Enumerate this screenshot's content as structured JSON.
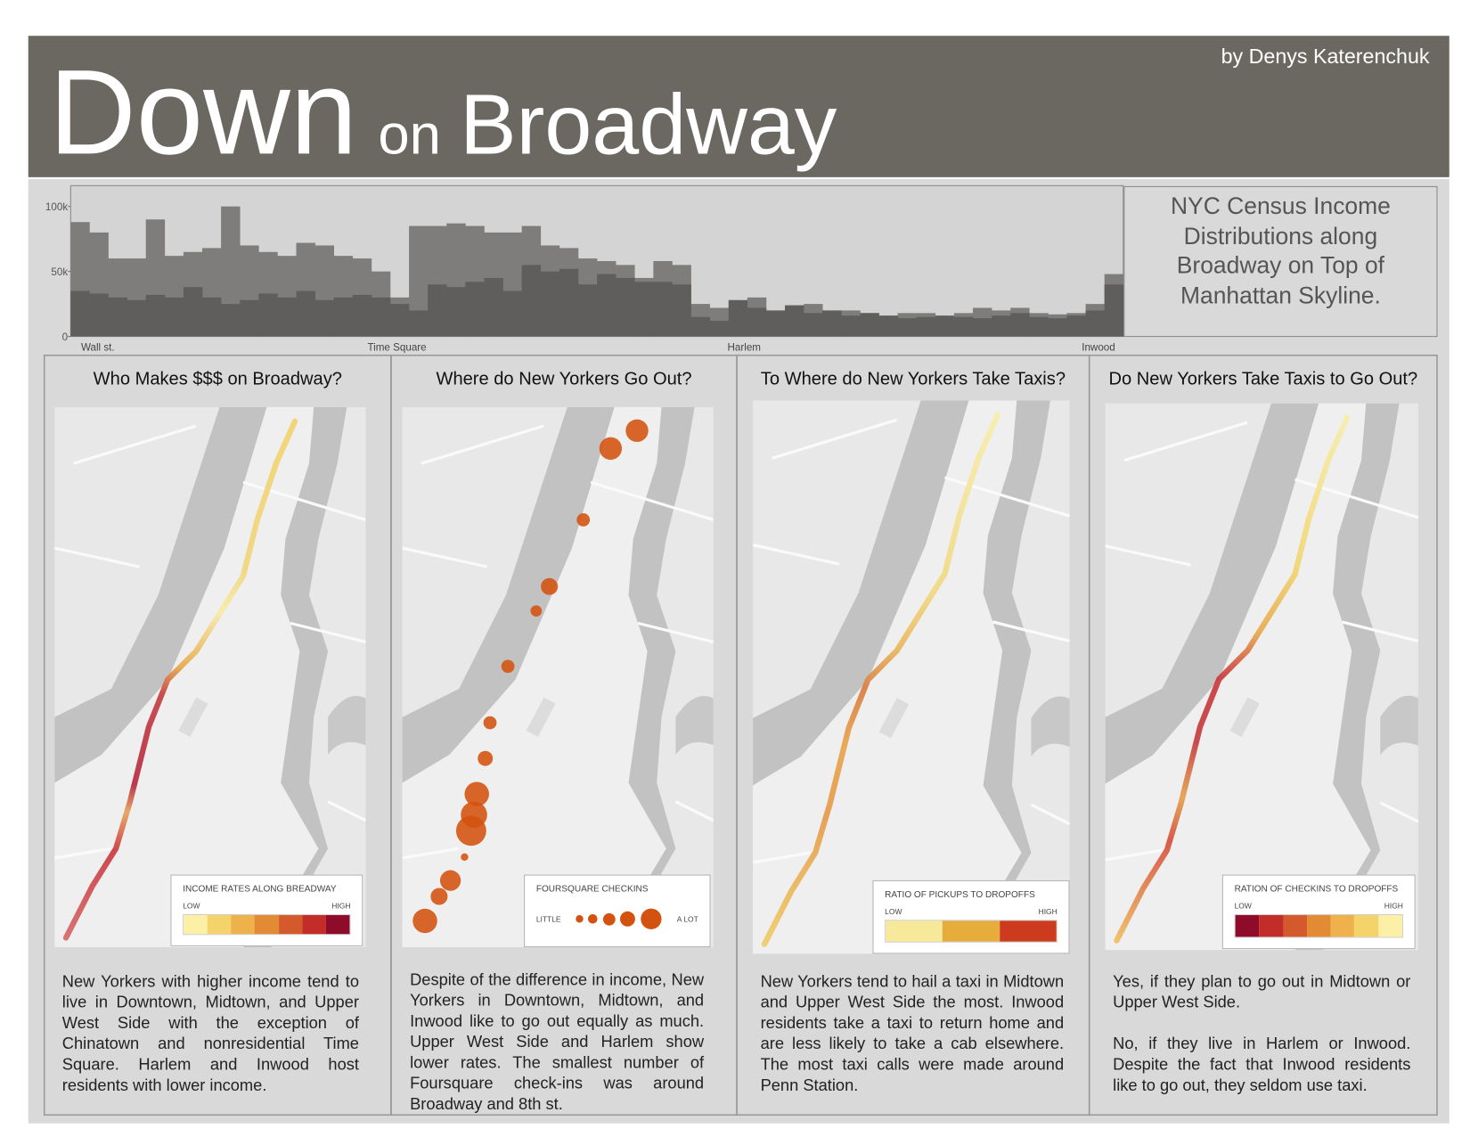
{
  "header": {
    "title_parts": [
      "Down",
      "on",
      "Broadway"
    ],
    "author": "by Denys Katerenchuk"
  },
  "chart_data": {
    "type": "bar",
    "ylim": [
      0,
      116000
    ],
    "yticks": [
      0,
      {
        "value": 50000,
        "label": "50k"
      },
      {
        "value": 100000,
        "label": "100k"
      }
    ],
    "x_labels": [
      "Wall st.",
      "Time Square",
      "Harlem",
      "Inwood"
    ],
    "series": [
      {
        "color": "#7e7d7b",
        "values": [
          88000,
          80000,
          60000,
          60000,
          90000,
          62000,
          65000,
          68000,
          100000,
          70000,
          65000,
          62000,
          72000,
          70000,
          62000,
          60000,
          50000,
          30000,
          85000,
          85000,
          87000,
          85000,
          80000,
          80000,
          85000,
          70000,
          68000,
          60000,
          58000,
          55000,
          45000,
          58000,
          55000,
          25000,
          22000,
          20000,
          30000,
          20000,
          18000,
          25000,
          20000,
          20000,
          18000,
          16000,
          18000,
          18000,
          16000,
          18000,
          22000,
          20000,
          22000,
          18000,
          17000,
          18000,
          25000,
          48000
        ]
      },
      {
        "color": "#5f5e5c",
        "values": [
          35000,
          33000,
          30000,
          28000,
          32000,
          30000,
          38000,
          30000,
          25000,
          28000,
          33000,
          30000,
          35000,
          28000,
          30000,
          32000,
          30000,
          25000,
          20000,
          40000,
          38000,
          42000,
          45000,
          35000,
          55000,
          50000,
          52000,
          40000,
          48000,
          45000,
          42000,
          42000,
          40000,
          15000,
          12000,
          28000,
          22000,
          20000,
          24000,
          18000,
          20000,
          16000,
          18000,
          16000,
          14000,
          15000,
          16000,
          15000,
          14000,
          16000,
          18000,
          15000,
          14000,
          16000,
          20000,
          40000
        ]
      }
    ]
  },
  "caption": "NYC Census Income Distributions along Broadway on Top of Manhattan Skyline.",
  "panels": [
    {
      "title": "Who Makes $$$ on Broadway?",
      "legend": {
        "title": "INCOME RATES ALONG BREADWAY",
        "low": "LOW",
        "high": "HIGH"
      },
      "text": [
        "New Yorkers with higher income tend to live in Downtown, Midtown, and Upper West Side with the exception of Chinatown and nonresidential Time Square. Harlem and Inwood host residents with lower income."
      ]
    },
    {
      "title": "Where do New Yorkers Go Out?",
      "legend": {
        "title": "FOURSQUARE CHECKINS",
        "low": "LITTLE",
        "high": "A LOT"
      },
      "text": [
        "Despite of the difference in income, New Yorkers in Downtown, Midtown, and Inwood like to go out equally as much. Upper West Side and Harlem show lower rates. The smallest number of Foursquare check-ins was around Broadway and 8th st."
      ]
    },
    {
      "title": "To Where do New Yorkers Take Taxis?",
      "legend": {
        "title": "RATIO OF PICKUPS TO DROPOFFS",
        "low": "LOW",
        "high": "HIGH"
      },
      "text": [
        "New Yorkers tend to hail a taxi in Midtown and Upper West Side the most. Inwood residents take a taxi to return home and are less likely to take a cab elsewhere. The most taxi calls were made around Penn Station."
      ]
    },
    {
      "title": "Do New Yorkers Take Taxis to Go Out?",
      "legend": {
        "title": "RATION OF CHECKINS TO DROPOFFS",
        "low": "LOW",
        "high": "HIGH"
      },
      "text": [
        "Yes, if they plan to go out in Midtown or Upper West Side.",
        "No, if they live in Harlem or Inwood. Despite the fact that Inwood residents like to go out, they seldom use taxi."
      ]
    }
  ]
}
